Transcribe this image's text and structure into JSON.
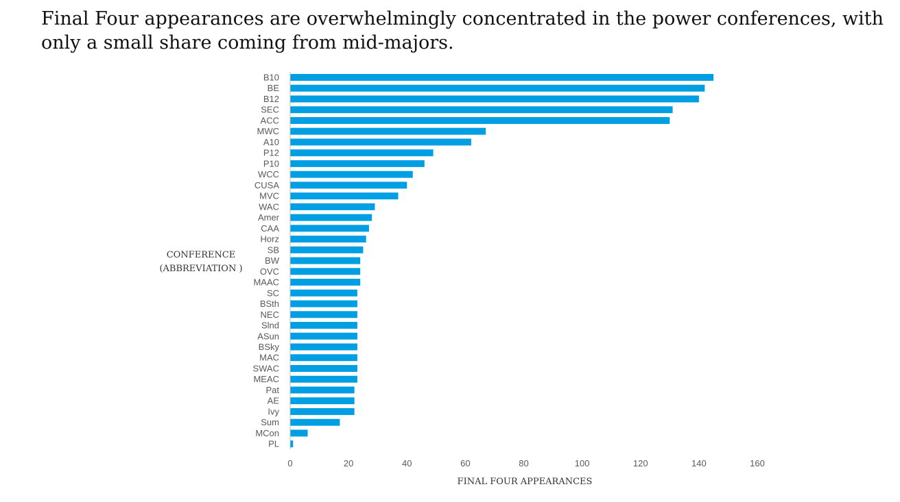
{
  "headline": "Final Four appearances are overwhelmingly concentrated in the power conferences, with only a small share coming from mid-majors.",
  "chart_data": {
    "type": "bar",
    "orientation": "horizontal",
    "title": "",
    "xlabel": "FINAL FOUR APPEARANCES",
    "ylabel_line1": "CONFERENCE",
    "ylabel_line2": "(ABBREVIATION )",
    "xlim": [
      0,
      160
    ],
    "xticks": [
      0,
      20,
      40,
      60,
      80,
      100,
      120,
      140,
      160
    ],
    "grid": false,
    "bar_color": "#009FE3",
    "categories": [
      "B10",
      "BE",
      "B12",
      "SEC",
      "ACC",
      "MWC",
      "A10",
      "P12",
      "P10",
      "WCC",
      "CUSA",
      "MVC",
      "WAC",
      "Amer",
      "CAA",
      "Horz",
      "SB",
      "BW",
      "OVC",
      "MAAC",
      "SC",
      "BSth",
      "NEC",
      "Slnd",
      "ASun",
      "BSky",
      "MAC",
      "SWAC",
      "MEAC",
      "Pat",
      "AE",
      "Ivy",
      "Sum",
      "MCon",
      "PL"
    ],
    "values": [
      145,
      142,
      140,
      131,
      130,
      67,
      62,
      49,
      46,
      42,
      40,
      37,
      29,
      28,
      27,
      26,
      25,
      24,
      24,
      24,
      23,
      23,
      23,
      23,
      23,
      23,
      23,
      23,
      23,
      22,
      22,
      22,
      17,
      6,
      1
    ]
  }
}
